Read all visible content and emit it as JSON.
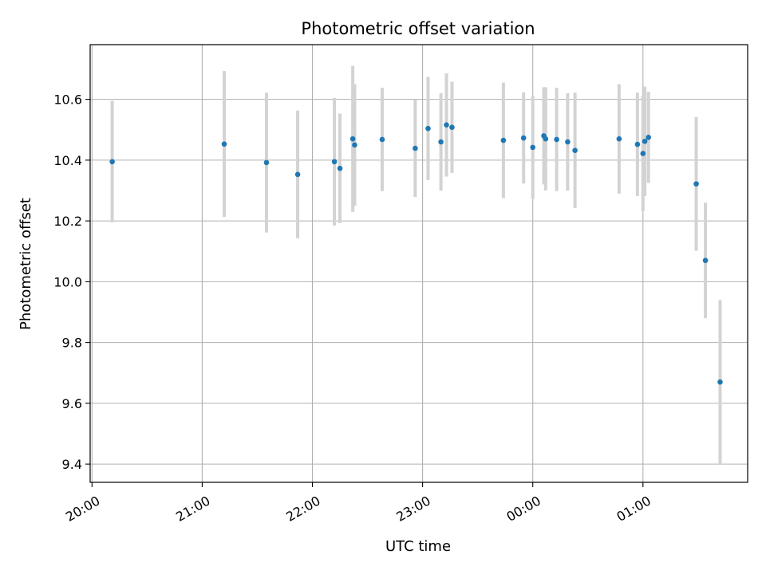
{
  "chart_data": {
    "type": "scatter",
    "title": "Photometric offset variation",
    "xlabel": "UTC time",
    "ylabel": "Photometric offset",
    "x_tick_labels": [
      "20:00",
      "21:00",
      "22:00",
      "23:00",
      "00:00",
      "01:00"
    ],
    "y_tick_labels": [
      "9.4",
      "9.6",
      "9.8",
      "10.0",
      "10.2",
      "10.4",
      "10.6"
    ],
    "xlim": [
      "19:59",
      "01:57"
    ],
    "ylim": [
      9.34,
      10.78
    ],
    "grid": true,
    "colors": {
      "marker": "#1f77b4",
      "errorbar": "#d3d3d3",
      "grid": "#b0b0b0"
    },
    "series": [
      {
        "points": [
          {
            "x": "20:11",
            "y": 10.395,
            "err": 0.2
          },
          {
            "x": "21:12",
            "y": 10.453,
            "err": 0.24
          },
          {
            "x": "21:35",
            "y": 10.392,
            "err": 0.23
          },
          {
            "x": "21:52",
            "y": 10.353,
            "err": 0.21
          },
          {
            "x": "22:12",
            "y": 10.395,
            "err": 0.21
          },
          {
            "x": "22:15",
            "y": 10.373,
            "err": 0.18
          },
          {
            "x": "22:22",
            "y": 10.47,
            "err": 0.24
          },
          {
            "x": "22:23",
            "y": 10.45,
            "err": 0.2
          },
          {
            "x": "22:38",
            "y": 10.468,
            "err": 0.17
          },
          {
            "x": "22:56",
            "y": 10.439,
            "err": 0.16
          },
          {
            "x": "23:03",
            "y": 10.504,
            "err": 0.17
          },
          {
            "x": "23:10",
            "y": 10.46,
            "err": 0.16
          },
          {
            "x": "23:13",
            "y": 10.516,
            "err": 0.17
          },
          {
            "x": "23:16",
            "y": 10.508,
            "err": 0.15
          },
          {
            "x": "23:44",
            "y": 10.465,
            "err": 0.19
          },
          {
            "x": "23:55",
            "y": 10.473,
            "err": 0.15
          },
          {
            "x": "00:00",
            "y": 10.442,
            "err": 0.17
          },
          {
            "x": "00:06",
            "y": 10.48,
            "err": 0.16
          },
          {
            "x": "00:07",
            "y": 10.47,
            "err": 0.17
          },
          {
            "x": "00:13",
            "y": 10.468,
            "err": 0.17
          },
          {
            "x": "00:19",
            "y": 10.46,
            "err": 0.16
          },
          {
            "x": "00:23",
            "y": 10.432,
            "err": 0.19
          },
          {
            "x": "00:47",
            "y": 10.47,
            "err": 0.18
          },
          {
            "x": "00:57",
            "y": 10.452,
            "err": 0.17
          },
          {
            "x": "01:00",
            "y": 10.422,
            "err": 0.19
          },
          {
            "x": "01:01",
            "y": 10.462,
            "err": 0.18
          },
          {
            "x": "01:03",
            "y": 10.475,
            "err": 0.15
          },
          {
            "x": "01:29",
            "y": 10.322,
            "err": 0.22
          },
          {
            "x": "01:34",
            "y": 10.07,
            "err": 0.19
          },
          {
            "x": "01:42",
            "y": 9.67,
            "err": 0.27
          }
        ]
      }
    ]
  }
}
